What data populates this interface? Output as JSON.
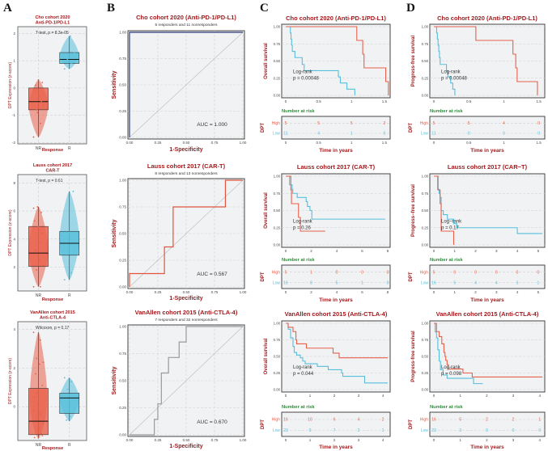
{
  "panel_letters": [
    "A",
    "B",
    "C",
    "D"
  ],
  "colors": {
    "high": "#e8604a",
    "low": "#56bfdc",
    "title": "#a3191c",
    "risk_header": "#2e8b3a",
    "panel_bg": "#f1f2f4"
  },
  "chart_data": {
    "boxplots": [
      {
        "type": "box",
        "title": [
          "Cho cohort 2020",
          "Anti-PD-1/PD-L1"
        ],
        "test": "T-test, p = 8.3e-05",
        "ylabel": "DPT Expression (z-score)",
        "xlabel": "Response",
        "ylim": [
          -2.05,
          2.25
        ],
        "yticks": [
          -2,
          -1,
          0,
          1,
          2
        ],
        "groups": [
          {
            "name": "NR",
            "min": -1.8,
            "q1": -0.8,
            "median": -0.5,
            "q3": 0.0,
            "max": 0.3,
            "points": [
              -1.8,
              -1.3,
              -0.8,
              -0.6,
              -0.3,
              0.1,
              0.2,
              0.3,
              -0.1,
              -0.5,
              -0.9
            ]
          },
          {
            "name": "R",
            "min": 0.7,
            "q1": 0.9,
            "median": 1.05,
            "q3": 1.3,
            "max": 1.9,
            "points": [
              0.7,
              0.9,
              1.05,
              1.3,
              1.9
            ]
          }
        ]
      },
      {
        "type": "box",
        "title": [
          "Lauss cohort 2017",
          "CAR-T"
        ],
        "test": "T-test, p = 0.61",
        "ylabel": "DPT Expression (z-score)",
        "xlabel": "Response",
        "ylim": [
          0.3,
          8.6
        ],
        "yticks": [
          2,
          4,
          6,
          8
        ],
        "groups": [
          {
            "name": "NR",
            "min": 0.6,
            "q1": 2.05,
            "median": 3.0,
            "q3": 4.9,
            "max": 6.3,
            "points": [
              0.6,
              0.6,
              1.8,
              2.1,
              2.5,
              3.2,
              4.4,
              4.9,
              5.3,
              5.9,
              6.3,
              6.2,
              3.8
            ]
          },
          {
            "name": "R",
            "min": 1.1,
            "q1": 2.85,
            "median": 3.7,
            "q3": 4.55,
            "max": 7.4,
            "points": [
              1.1,
              1.6,
              3.2,
              3.4,
              4.0,
              4.5,
              7.4,
              4.5
            ]
          }
        ]
      },
      {
        "type": "box",
        "title": [
          "VanAllen cohort 2015",
          "Anti-CTLA-4"
        ],
        "test": "Wilcoxon, p = 0.17",
        "ylabel": "DPT Expression (z-score)",
        "xlabel": "Response",
        "ylim": [
          -1.75,
          4.4
        ],
        "yticks": [
          0,
          2,
          4
        ],
        "groups": [
          {
            "name": "NR",
            "min": -1.65,
            "q1": -1.45,
            "median": -0.75,
            "q3": 0.95,
            "max": 3.85,
            "points": [
              3.85,
              3.45,
              2.5,
              2.3,
              2.2,
              1.7,
              1.1,
              0.9,
              0.5,
              0.3,
              0.1,
              -0.2,
              -0.4,
              -0.6,
              -0.9,
              -1.1,
              -1.3,
              -1.5,
              -1.6,
              -1.6,
              -1.4,
              -1.2,
              -0.8,
              -0.3,
              0.7
            ]
          },
          {
            "name": "R",
            "min": -0.75,
            "q1": -0.35,
            "median": 0.45,
            "q3": 0.7,
            "max": 1.5,
            "points": [
              1.5,
              1.3,
              0.9,
              -0.1,
              -0.5,
              -0.7,
              0.3
            ]
          }
        ]
      }
    ],
    "roc": [
      {
        "type": "line",
        "title": "Cho cohort 2020 (Anti-PD-1/PD-L1)",
        "subtitle": "5 responders and 11 nonresponders",
        "auc": "AUC = 1.000",
        "color": "#2b3d7c",
        "xlabel": "1-Specificity",
        "ylabel": "Sensitivity",
        "ticks": [
          "0.00",
          "0.25",
          "0.50",
          "0.75",
          "1.00"
        ],
        "points": [
          [
            0,
            0
          ],
          [
            0,
            1
          ],
          [
            1,
            1
          ]
        ]
      },
      {
        "type": "line",
        "title": "Lauss cohort 2017 (CAR-T)",
        "subtitle": "8 responders and 13 nonresponders",
        "auc": "AUC = 0.567",
        "color": "#e0553c",
        "xlabel": "1-Specificity",
        "ylabel": "Sensitivity",
        "ticks": [
          "0.00",
          "0.25",
          "0.50",
          "0.75",
          "1.00"
        ],
        "points": [
          [
            0,
            0
          ],
          [
            0,
            0.125
          ],
          [
            0.308,
            0.125
          ],
          [
            0.308,
            0.375
          ],
          [
            0.385,
            0.375
          ],
          [
            0.385,
            0.75
          ],
          [
            0.846,
            0.75
          ],
          [
            0.846,
            1
          ],
          [
            1,
            1
          ]
        ]
      },
      {
        "type": "line",
        "title": "VanAllen cohort 2015 (Anti-CTLA-4)",
        "subtitle": "7 responders and 32 nonresponders",
        "auc": "AUC = 0.670",
        "color": "#9a9a9a",
        "xlabel": "1-Specificity",
        "ylabel": "Sensitivity",
        "ticks": [
          "0.00",
          "0.25",
          "0.50",
          "0.75",
          "1.00"
        ],
        "points": [
          [
            0,
            0
          ],
          [
            0.219,
            0
          ],
          [
            0.219,
            0.143
          ],
          [
            0.25,
            0.143
          ],
          [
            0.25,
            0.286
          ],
          [
            0.281,
            0.286
          ],
          [
            0.281,
            0.571
          ],
          [
            0.344,
            0.571
          ],
          [
            0.344,
            0.714
          ],
          [
            0.438,
            0.714
          ],
          [
            0.438,
            0.857
          ],
          [
            0.5,
            0.857
          ],
          [
            0.5,
            1
          ],
          [
            1,
            1
          ]
        ]
      }
    ],
    "km": [
      {
        "type": "line",
        "col": "C",
        "title": "Cho cohort 2020 (Anti-PD-1/PD-L1)",
        "ylabel": "Overall survival",
        "logrank": "Log-rank",
        "p": "p = 0.00048",
        "xlim": [
          0,
          1.55
        ],
        "xticks": [
          0,
          0.5,
          1,
          1.5
        ],
        "xticklabels": [
          "0",
          "0.5",
          "1",
          "1.5"
        ],
        "high": [
          [
            0,
            1
          ],
          [
            1.08,
            0.8
          ],
          [
            1.17,
            0.6
          ],
          [
            1.19,
            0.4
          ],
          [
            1.52,
            0.2
          ],
          [
            1.56,
            0
          ]
        ],
        "low": [
          [
            0,
            1
          ],
          [
            0.07,
            0.91
          ],
          [
            0.08,
            0.82
          ],
          [
            0.09,
            0.73
          ],
          [
            0.1,
            0.64
          ],
          [
            0.14,
            0.55
          ],
          [
            0.25,
            0.45
          ],
          [
            0.28,
            0.36
          ],
          [
            0.8,
            0.27
          ],
          [
            0.83,
            0.18
          ],
          [
            0.93,
            0.09
          ],
          [
            1.05,
            0
          ]
        ],
        "risk_header": "Number at risk",
        "strata_label": "DPT",
        "strata": [
          "High",
          "Low"
        ],
        "risk_high": [
          "5",
          "5",
          "5",
          "2"
        ],
        "risk_low": [
          "11",
          "4",
          "1",
          "0"
        ],
        "xlabel": "Time in years"
      },
      {
        "type": "line",
        "col": "D",
        "title": "Cho cohort 2020 (Anti-PD-1/PD-L1)",
        "ylabel": "Progress-free survival",
        "logrank": "Log-rank",
        "p": "p = 0.00048",
        "xlim": [
          0,
          1.55
        ],
        "xticks": [
          0,
          0.5,
          1,
          1.5
        ],
        "xticklabels": [
          "0",
          "0.5",
          "1",
          "1.5"
        ],
        "high": [
          [
            0,
            1
          ],
          [
            0.6,
            0.8
          ],
          [
            1.13,
            0.6
          ],
          [
            1.17,
            0.4
          ],
          [
            1.19,
            0.2
          ],
          [
            1.48,
            0
          ]
        ],
        "low": [
          [
            0,
            1
          ],
          [
            0.04,
            0.91
          ],
          [
            0.05,
            0.82
          ],
          [
            0.06,
            0.73
          ],
          [
            0.07,
            0.64
          ],
          [
            0.08,
            0.55
          ],
          [
            0.09,
            0.45
          ],
          [
            0.18,
            0.36
          ],
          [
            0.2,
            0.27
          ],
          [
            0.24,
            0.18
          ],
          [
            0.27,
            0.09
          ],
          [
            0.3,
            0
          ]
        ],
        "risk_header": "Number at risk",
        "strata_label": "DPT",
        "strata": [
          "High",
          "Low"
        ],
        "risk_high": [
          "5",
          "5",
          "4",
          "0"
        ],
        "risk_low": [
          "11",
          "0",
          "0",
          "0"
        ],
        "xlabel": "Time in years"
      },
      {
        "type": "line",
        "col": "C",
        "title": "Lauss cohort 2017 (CAR-T)",
        "ylabel": "Overall survival",
        "logrank": "Log-rank",
        "p": "p = 0.26",
        "xlim": [
          0,
          8
        ],
        "xticks": [
          0,
          2,
          4,
          6,
          8
        ],
        "xticklabels": [
          "0",
          "2",
          "4",
          "6",
          "8"
        ],
        "high": [
          [
            0,
            1
          ],
          [
            0.4,
            0.8
          ],
          [
            0.45,
            0.6
          ],
          [
            1.0,
            0.4
          ],
          [
            1.15,
            0.2
          ],
          [
            3.1,
            0.2
          ]
        ],
        "low": [
          [
            0,
            1
          ],
          [
            0.3,
            0.875
          ],
          [
            0.5,
            0.81
          ],
          [
            0.55,
            0.75
          ],
          [
            0.9,
            0.69
          ],
          [
            1.6,
            0.63
          ],
          [
            1.7,
            0.56
          ],
          [
            1.9,
            0.5
          ],
          [
            2.05,
            0.375
          ],
          [
            7.8,
            0.375
          ]
        ],
        "risk_header": "Number at risk",
        "strata_label": "DPT",
        "strata": [
          "High",
          "Low"
        ],
        "risk_high": [
          "5",
          "1",
          "0",
          "0",
          "0"
        ],
        "risk_low": [
          "16",
          "8",
          "5",
          "1",
          "0"
        ],
        "xlabel": "Time in years"
      },
      {
        "type": "line",
        "col": "D",
        "title": "Lauss cohort 2017 (CAR−T)",
        "ylabel": "Progress−free survival",
        "logrank": "Log−rank",
        "p": "p = 0.17",
        "xlim": [
          0,
          5.2
        ],
        "xticks": [
          0,
          1,
          2,
          3,
          4,
          5
        ],
        "xticklabels": [
          "0",
          "1",
          "2",
          "3",
          "4",
          "5"
        ],
        "high": [
          [
            0,
            1
          ],
          [
            0.2,
            0.8
          ],
          [
            0.3,
            0.6
          ],
          [
            0.35,
            0.2
          ],
          [
            0.95,
            0.2
          ],
          [
            0.95,
            0
          ]
        ],
        "low": [
          [
            0,
            1
          ],
          [
            0.18,
            0.81
          ],
          [
            0.25,
            0.75
          ],
          [
            0.3,
            0.69
          ],
          [
            0.35,
            0.5
          ],
          [
            0.45,
            0.44
          ],
          [
            0.65,
            0.375
          ],
          [
            0.95,
            0.31
          ],
          [
            1.1,
            0.25
          ],
          [
            4.0,
            0.25
          ],
          [
            4.0,
            0.165
          ],
          [
            5.2,
            0.165
          ]
        ],
        "risk_header": "Number at risk",
        "strata_label": "DPT",
        "strata": [
          "High",
          "Low"
        ],
        "risk_high": [
          "5",
          "0",
          "0",
          "0",
          "0",
          "0"
        ],
        "risk_low": [
          "16",
          "5",
          "4",
          "4",
          "3",
          "1"
        ],
        "xlabel": "Time in years"
      },
      {
        "type": "line",
        "col": "C",
        "title": "VanAllen cohort 2015 (Anti-CTLA-4)",
        "ylabel": "Overall survival",
        "logrank": "Log-rank",
        "p": "p = 0.044",
        "xlim": [
          0,
          4.2
        ],
        "xticks": [
          0,
          1,
          2,
          3,
          4
        ],
        "xticklabels": [
          "0",
          "1",
          "2",
          "3",
          "4"
        ],
        "high": [
          [
            0,
            1
          ],
          [
            0.1,
            0.94
          ],
          [
            0.3,
            0.875
          ],
          [
            0.42,
            0.75
          ],
          [
            0.45,
            0.69
          ],
          [
            0.85,
            0.625
          ],
          [
            1.95,
            0.55
          ],
          [
            2.2,
            0.48
          ],
          [
            4.2,
            0.48
          ]
        ],
        "low": [
          [
            0,
            1
          ],
          [
            0.1,
            0.91
          ],
          [
            0.2,
            0.78
          ],
          [
            0.3,
            0.65
          ],
          [
            0.35,
            0.56
          ],
          [
            0.45,
            0.52
          ],
          [
            0.6,
            0.48
          ],
          [
            0.7,
            0.43
          ],
          [
            0.8,
            0.39
          ],
          [
            1.3,
            0.35
          ],
          [
            1.75,
            0.3
          ],
          [
            2.3,
            0.25
          ],
          [
            2.35,
            0.2
          ],
          [
            3.25,
            0.1
          ],
          [
            4.2,
            0.1
          ]
        ],
        "risk_header": "Number at risk",
        "strata_label": "DPT",
        "strata": [
          "High",
          "Low"
        ],
        "risk_high": [
          "16",
          "10",
          "6",
          "4",
          "2"
        ],
        "risk_low": [
          "23",
          "9",
          "7",
          "2",
          "1"
        ],
        "xlabel": "Time in years"
      },
      {
        "type": "line",
        "col": "D",
        "title": "VanAllen cohort 2015 (Anti-CTLA-4)",
        "ylabel": "Progress-free survival",
        "logrank": "Log-rank",
        "p": "p = 0.098",
        "xlim": [
          0,
          4.1
        ],
        "xticks": [
          0,
          1,
          2,
          3,
          4
        ],
        "xticklabels": [
          "0",
          "1",
          "2",
          "3",
          "4"
        ],
        "high": [
          [
            0,
            1
          ],
          [
            0.1,
            0.875
          ],
          [
            0.2,
            0.8
          ],
          [
            0.3,
            0.69
          ],
          [
            0.38,
            0.56
          ],
          [
            0.42,
            0.5
          ],
          [
            0.45,
            0.44
          ],
          [
            0.5,
            0.375
          ],
          [
            0.55,
            0.31
          ],
          [
            1.1,
            0.25
          ],
          [
            1.45,
            0.19
          ],
          [
            4.1,
            0.19
          ]
        ],
        "low": [
          [
            0,
            1
          ],
          [
            0.05,
            0.87
          ],
          [
            0.1,
            0.78
          ],
          [
            0.15,
            0.6
          ],
          [
            0.2,
            0.43
          ],
          [
            0.25,
            0.3
          ],
          [
            0.35,
            0.22
          ],
          [
            0.5,
            0.17
          ],
          [
            1.5,
            0.09
          ],
          [
            1.85,
            0.09
          ]
        ],
        "risk_header": "Number at risk",
        "strata_label": "DPT",
        "strata": [
          "High",
          "Low"
        ],
        "risk_high": [
          "16",
          "5",
          "2",
          "2",
          "1"
        ],
        "risk_low": [
          "23",
          "3",
          "0",
          "0",
          "0"
        ],
        "xlabel": "Time in years"
      }
    ]
  }
}
